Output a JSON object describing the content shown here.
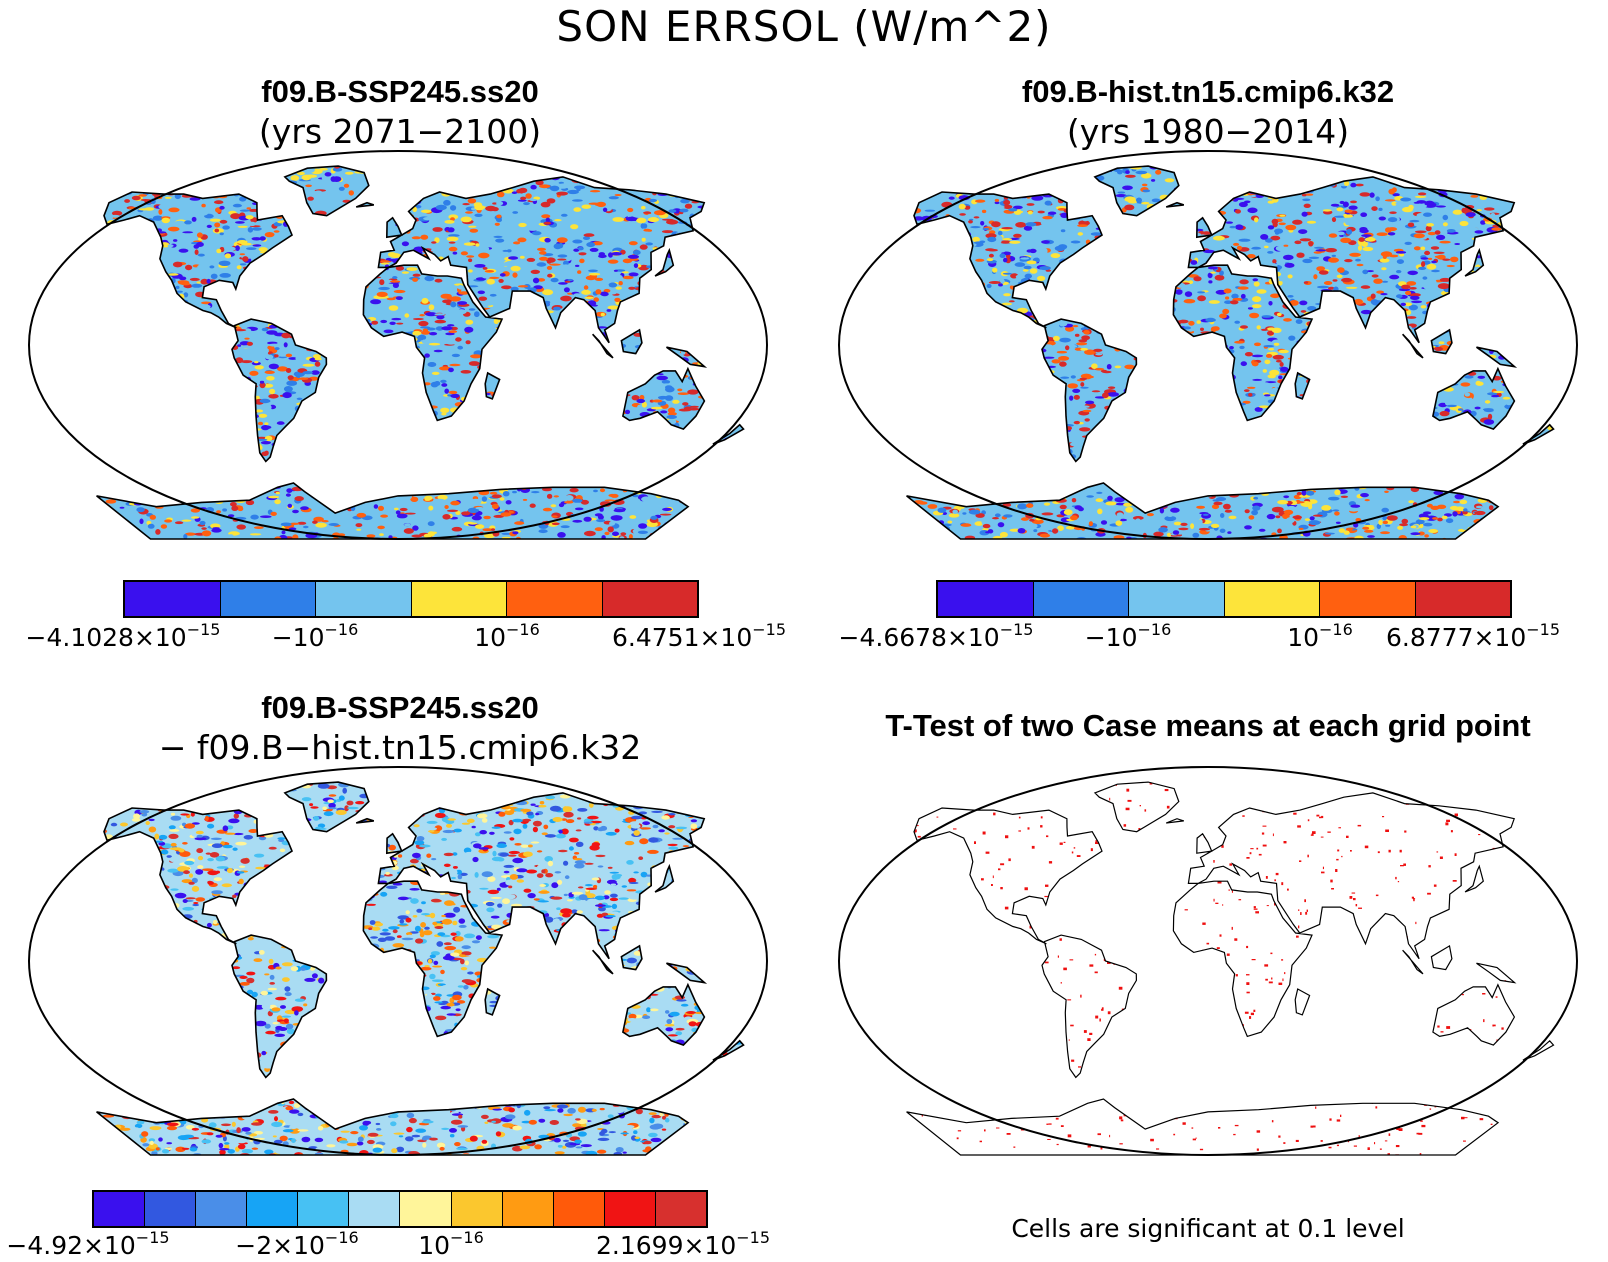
{
  "title": "SON ERRSOL (W/m^2)",
  "panels": [
    {
      "title_line1": "f09.B-SSP245.ss20",
      "title_line2": "(yrs 2071−2100)",
      "colorbar": [
        "#3a10ee",
        "#2f7fe8",
        "#74c4ee",
        "#fde43a",
        "#ff6010",
        "#d72a2a"
      ]
    },
    {
      "title_line1": "f09.B-hist.tn15.cmip6.k32",
      "title_line2": "(yrs 1980−2014)",
      "colorbar": [
        "#3a10ee",
        "#2f7fe8",
        "#74c4ee",
        "#fde43a",
        "#ff6010",
        "#d72a2a"
      ]
    },
    {
      "title_line1": "f09.B-SSP245.ss20",
      "title_line2": "− f09.B−hist.tn15.cmip6.k32",
      "colorbar": [
        "#3a10ee",
        "#3258e0",
        "#4a8ee8",
        "#17a4f5",
        "#47c1f3",
        "#a9dcf3",
        "#fff59a",
        "#fbc72e",
        "#ff9b12",
        "#ff5a0a",
        "#f01414",
        "#d7302e"
      ]
    },
    {
      "title_line1": "T-Test of two Case means at each grid point",
      "note": "Cells are significant at 0.1 level"
    }
  ],
  "colorbar_labels": {
    "p1": [
      {
        "base": "−4.1028×10",
        "exp": "−15"
      },
      {
        "base": "−10",
        "exp": "−16"
      },
      {
        "base": "10",
        "exp": "−16"
      },
      {
        "base": "6.4751×10",
        "exp": "−15"
      }
    ],
    "p2": [
      {
        "base": "−4.6678×10",
        "exp": "−15"
      },
      {
        "base": "−10",
        "exp": "−16"
      },
      {
        "base": "10",
        "exp": "−16"
      },
      {
        "base": "6.8777×10",
        "exp": "−15"
      }
    ],
    "p3": [
      {
        "base": "−4.92×10",
        "exp": "−15"
      },
      {
        "base": "−2×10",
        "exp": "−16"
      },
      {
        "base": "10",
        "exp": "−16"
      },
      {
        "base": "2.1699×10",
        "exp": "−15"
      }
    ]
  }
}
